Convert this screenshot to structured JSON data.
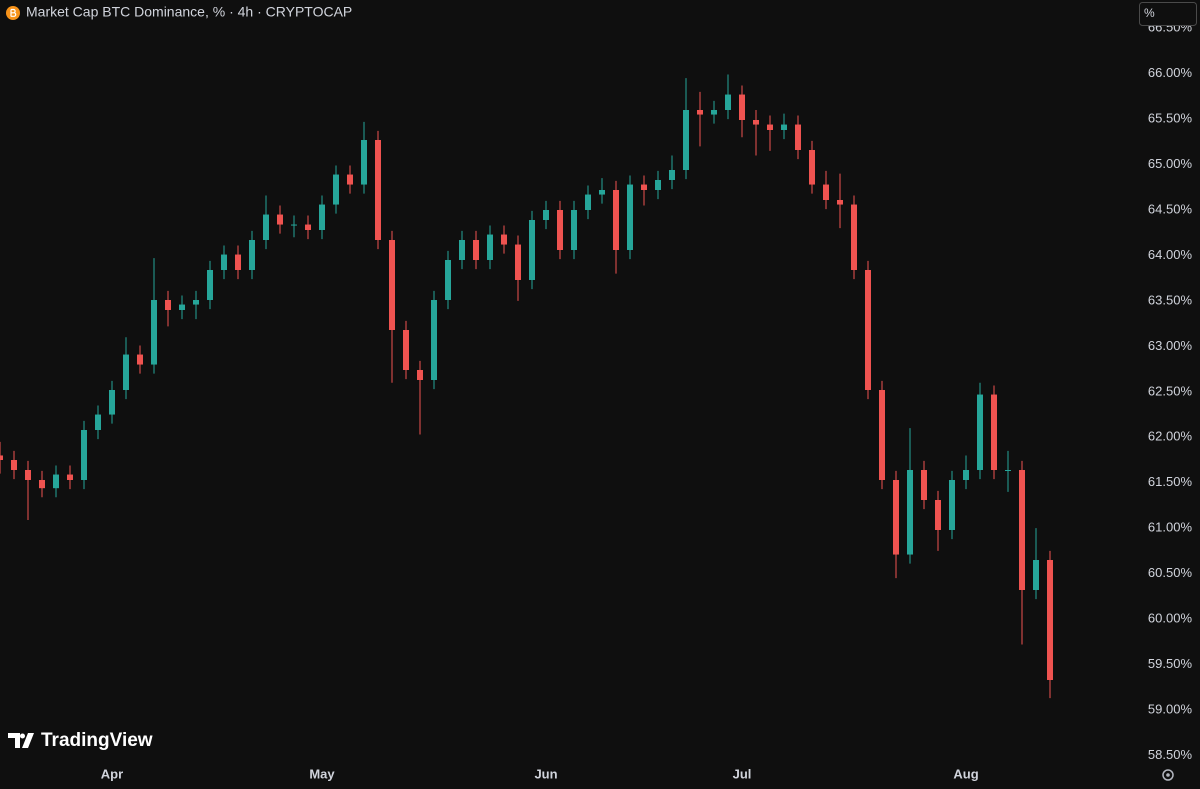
{
  "chart_data": {
    "type": "candlestick",
    "title": "Market Cap BTC Dominance, % · 4h · CRYPTOCAP",
    "scale_button": "%",
    "watermark": "TradingView",
    "up_color": "#26a69a",
    "down_color": "#ef5350",
    "grid": false,
    "categories": [
      null,
      null,
      null,
      null,
      null,
      null,
      null,
      null,
      "Apr",
      null,
      null,
      null,
      null,
      null,
      null,
      null,
      null,
      null,
      null,
      null,
      null,
      null,
      null,
      "May",
      null,
      null,
      null,
      null,
      null,
      null,
      null,
      null,
      null,
      null,
      null,
      null,
      null,
      null,
      null,
      "Jun",
      null,
      null,
      null,
      null,
      null,
      null,
      null,
      null,
      null,
      null,
      null,
      null,
      null,
      "Jul",
      null,
      null,
      null,
      null,
      null,
      null,
      null,
      null,
      null,
      null,
      null,
      null,
      null,
      null,
      null,
      "Aug",
      null,
      null,
      null,
      null,
      null,
      null
    ],
    "open": [
      61.8,
      61.75,
      61.64,
      61.53,
      61.44,
      61.59,
      61.53,
      62.08,
      62.25,
      62.52,
      62.91,
      62.8,
      63.51,
      63.4,
      63.46,
      63.51,
      63.84,
      64.01,
      63.84,
      64.17,
      64.45,
      64.34,
      64.34,
      64.28,
      64.56,
      64.89,
      64.78,
      65.27,
      64.17,
      63.18,
      62.74,
      62.63,
      63.51,
      63.95,
      64.17,
      63.95,
      64.23,
      64.12,
      63.73,
      64.39,
      64.5,
      64.06,
      64.5,
      64.67,
      64.72,
      64.06,
      64.78,
      64.72,
      64.83,
      64.94,
      65.6,
      65.55,
      65.6,
      65.77,
      65.49,
      65.44,
      65.38,
      65.44,
      65.16,
      64.78,
      64.61,
      64.56,
      63.84,
      62.52,
      61.53,
      60.71,
      61.64,
      61.31,
      60.98,
      61.53,
      61.64,
      62.47,
      61.64,
      61.64,
      60.32,
      60.65
    ],
    "high": [
      61.95,
      61.85,
      61.74,
      61.63,
      61.69,
      61.69,
      62.18,
      62.35,
      62.62,
      63.1,
      63.01,
      63.97,
      63.61,
      63.56,
      63.61,
      63.94,
      64.11,
      64.11,
      64.27,
      64.66,
      64.55,
      64.44,
      64.44,
      64.66,
      64.99,
      64.99,
      65.47,
      65.37,
      64.27,
      63.28,
      62.84,
      63.61,
      64.05,
      64.27,
      64.27,
      64.33,
      64.33,
      64.22,
      64.49,
      64.6,
      64.6,
      64.6,
      64.77,
      64.85,
      64.82,
      64.88,
      64.88,
      64.93,
      65.1,
      65.95,
      65.8,
      65.7,
      65.99,
      65.87,
      65.6,
      65.54,
      65.56,
      65.54,
      65.26,
      64.93,
      64.9,
      64.66,
      63.94,
      62.62,
      61.63,
      62.1,
      61.74,
      61.41,
      61.63,
      61.8,
      62.6,
      62.57,
      61.85,
      61.74,
      61.0,
      60.75
    ],
    "low": [
      61.6,
      61.54,
      61.09,
      61.34,
      61.34,
      61.43,
      61.43,
      61.98,
      62.15,
      62.42,
      62.7,
      62.7,
      63.22,
      63.3,
      63.3,
      63.41,
      63.74,
      63.74,
      63.74,
      64.07,
      64.24,
      64.2,
      64.18,
      64.18,
      64.46,
      64.68,
      64.68,
      64.07,
      62.6,
      62.64,
      62.03,
      62.53,
      63.41,
      63.85,
      63.85,
      63.85,
      64.02,
      63.5,
      63.63,
      64.29,
      63.96,
      63.96,
      64.4,
      64.57,
      63.8,
      63.96,
      64.55,
      64.62,
      64.73,
      64.84,
      65.2,
      65.45,
      65.5,
      65.3,
      65.1,
      65.15,
      65.28,
      65.06,
      64.68,
      64.51,
      64.3,
      63.74,
      62.42,
      61.43,
      60.45,
      60.61,
      61.21,
      60.75,
      60.88,
      61.43,
      61.54,
      61.54,
      61.4,
      59.72,
      60.22,
      59.13
    ],
    "close": [
      61.75,
      61.64,
      61.53,
      61.44,
      61.59,
      61.53,
      62.08,
      62.25,
      62.52,
      62.91,
      62.8,
      63.51,
      63.4,
      63.46,
      63.51,
      63.84,
      64.01,
      63.84,
      64.17,
      64.45,
      64.34,
      64.34,
      64.28,
      64.56,
      64.89,
      64.78,
      65.27,
      64.17,
      63.18,
      62.74,
      62.63,
      63.51,
      63.95,
      64.17,
      63.95,
      64.23,
      64.12,
      63.73,
      64.39,
      64.5,
      64.06,
      64.5,
      64.67,
      64.72,
      64.06,
      64.78,
      64.72,
      64.83,
      64.94,
      65.6,
      65.55,
      65.6,
      65.77,
      65.49,
      65.44,
      65.38,
      65.44,
      65.16,
      64.78,
      64.61,
      64.56,
      63.84,
      62.52,
      61.53,
      60.71,
      61.64,
      61.31,
      60.98,
      61.53,
      61.64,
      62.47,
      61.64,
      61.64,
      60.32,
      60.65,
      59.33
    ],
    "ylim": [
      58.45,
      66.81
    ],
    "yticks": [
      {
        "value": 58.5,
        "label": "58.50%"
      },
      {
        "value": 59,
        "label": "59.00%"
      },
      {
        "value": 59.5,
        "label": "59.50%"
      },
      {
        "value": 60,
        "label": "60.00%"
      },
      {
        "value": 60.5,
        "label": "60.50%"
      },
      {
        "value": 61,
        "label": "61.00%"
      },
      {
        "value": 61.5,
        "label": "61.50%"
      },
      {
        "value": 62,
        "label": "62.00%"
      },
      {
        "value": 62.5,
        "label": "62.50%"
      },
      {
        "value": 63,
        "label": "63.00%"
      },
      {
        "value": 63.5,
        "label": "63.50%"
      },
      {
        "value": 64,
        "label": "64.00%"
      },
      {
        "value": 64.5,
        "label": "64.50%"
      },
      {
        "value": 65,
        "label": "65.00%"
      },
      {
        "value": 65.5,
        "label": "65.50%"
      },
      {
        "value": 66,
        "label": "66.00%"
      },
      {
        "value": 66.5,
        "label": "66.50%"
      }
    ]
  }
}
